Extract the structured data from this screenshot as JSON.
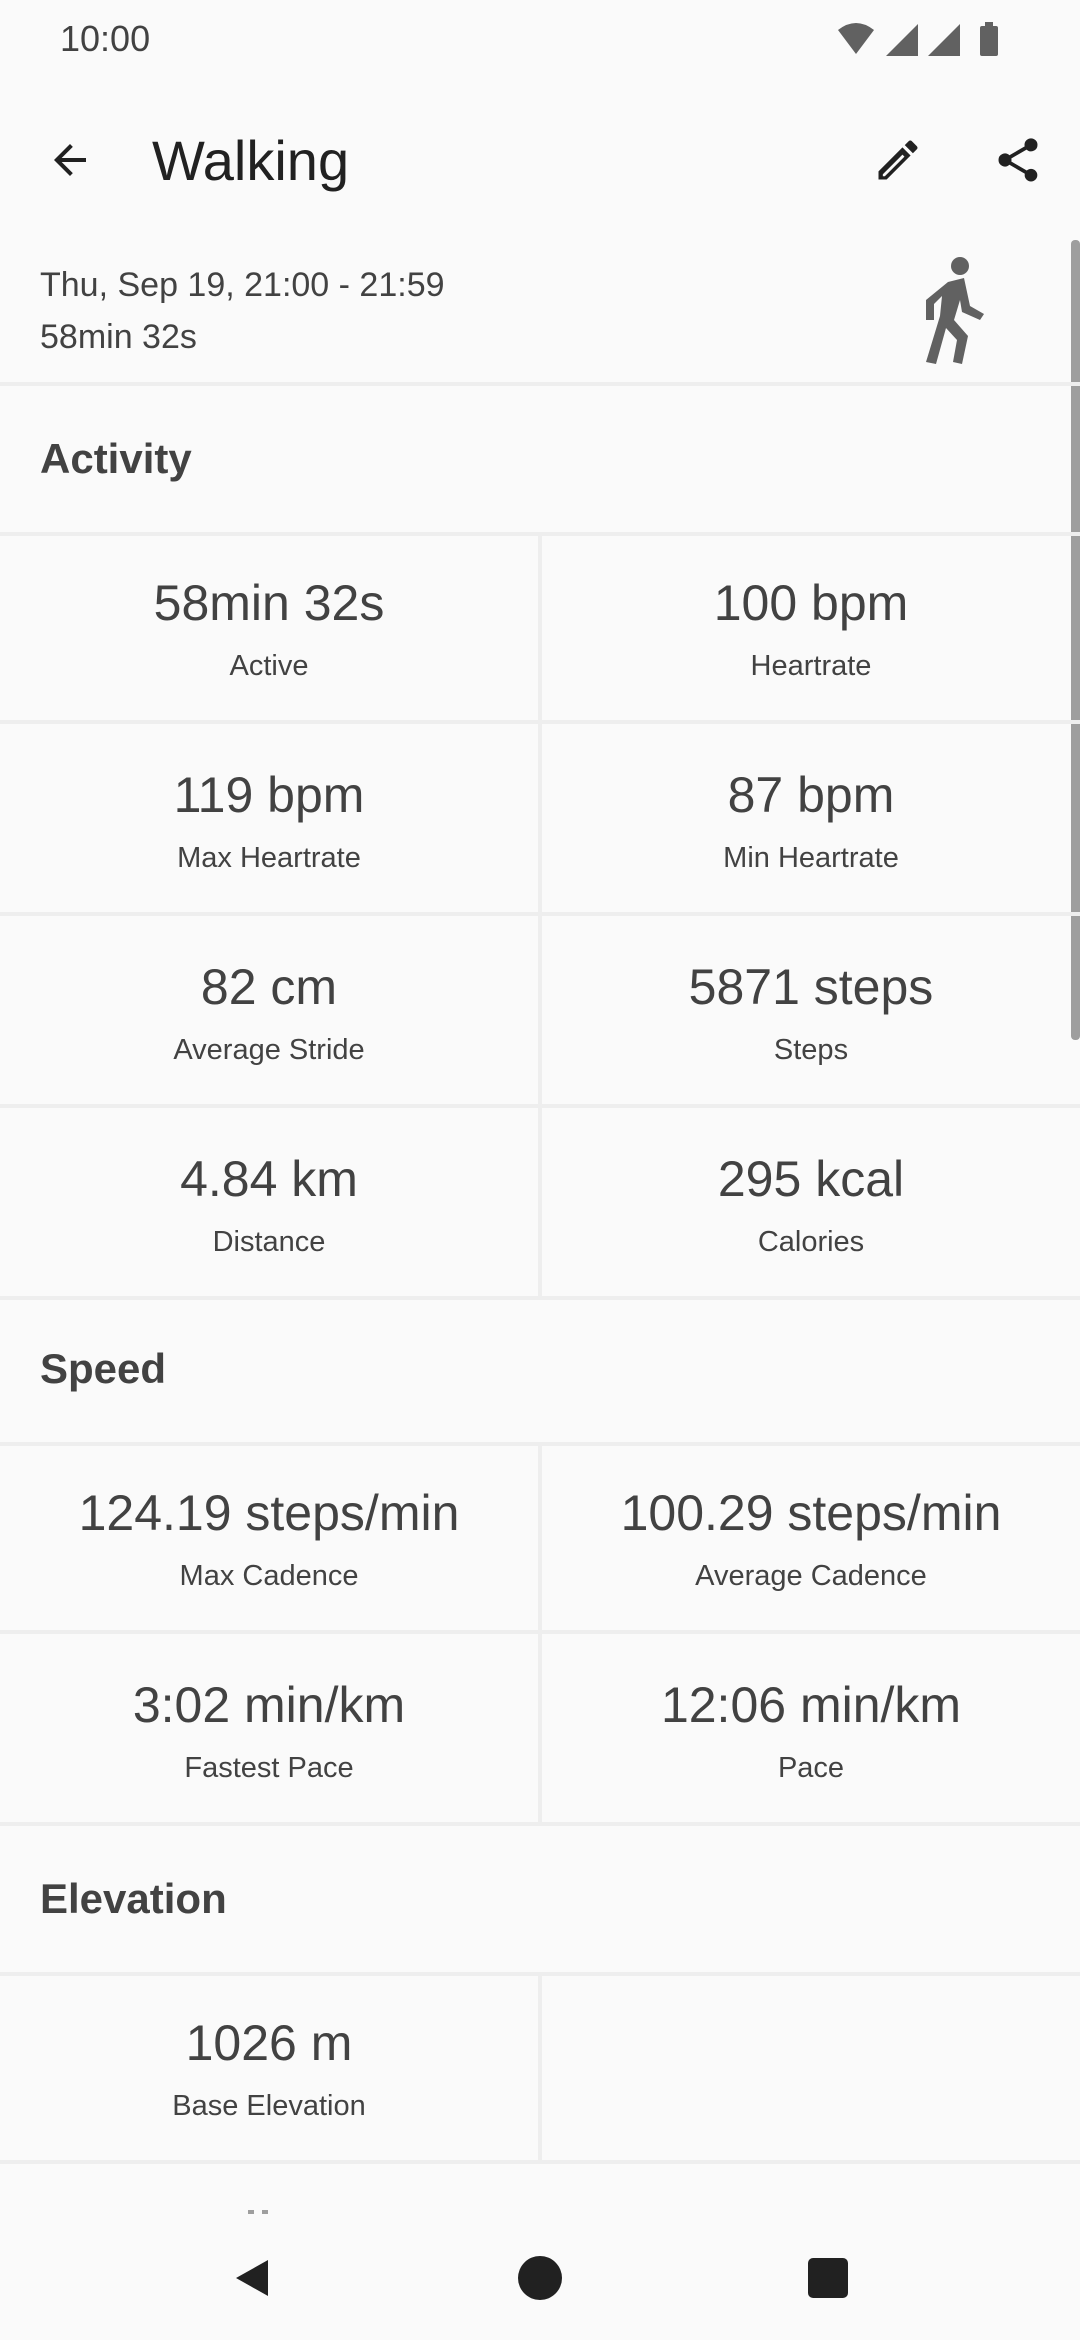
{
  "status_bar": {
    "time": "10:00",
    "icons": [
      "wifi-icon",
      "signal-icon",
      "signal-icon",
      "battery-icon"
    ]
  },
  "app_bar": {
    "title": "Walking",
    "back_icon": "arrow-back-icon",
    "edit_icon": "pencil-icon",
    "share_icon": "share-icon"
  },
  "summary": {
    "date_range": "Thu, Sep 19, 21:00 - 21:59",
    "duration": "58min 32s",
    "activity_icon": "walking-person-icon"
  },
  "sections": {
    "activity": {
      "title": "Activity",
      "cells": [
        {
          "value": "58min 32s",
          "label": "Active"
        },
        {
          "value": "100 bpm",
          "label": "Heartrate"
        },
        {
          "value": "119 bpm",
          "label": "Max Heartrate"
        },
        {
          "value": "87 bpm",
          "label": "Min Heartrate"
        },
        {
          "value": "82 cm",
          "label": "Average Stride"
        },
        {
          "value": "5871 steps",
          "label": "Steps"
        },
        {
          "value": "4.84 km",
          "label": "Distance"
        },
        {
          "value": "295 kcal",
          "label": "Calories"
        }
      ]
    },
    "speed": {
      "title": "Speed",
      "cells": [
        {
          "value": "124.19 steps/min",
          "label": "Max Cadence"
        },
        {
          "value": "100.29 steps/min",
          "label": "Average Cadence"
        },
        {
          "value": "3:02 min/km",
          "label": "Fastest Pace"
        },
        {
          "value": "12:06 min/km",
          "label": "Pace"
        }
      ]
    },
    "elevation": {
      "title": "Elevation",
      "cells": [
        {
          "value": "1026 m",
          "label": "Base Elevation"
        }
      ]
    }
  },
  "nav_bar": {
    "icons": [
      "nav-back-icon",
      "nav-home-icon",
      "nav-recents-icon"
    ]
  },
  "colors": {
    "background": "#fafafa",
    "text_primary": "#212121",
    "text_secondary": "#424242",
    "divider": "#eeeeee",
    "icon": "#616161"
  }
}
